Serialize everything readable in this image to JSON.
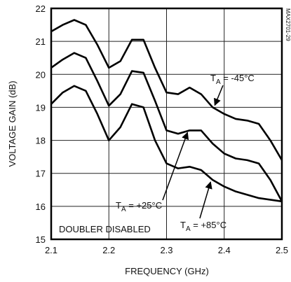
{
  "chart_data": {
    "type": "line",
    "xlabel": "FREQUENCY (GHz)",
    "ylabel": "VOLTAGE GAIN (dB)",
    "x": [
      2.1,
      2.12,
      2.14,
      2.16,
      2.18,
      2.2,
      2.22,
      2.24,
      2.26,
      2.28,
      2.3,
      2.32,
      2.34,
      2.36,
      2.38,
      2.4,
      2.42,
      2.44,
      2.46,
      2.48,
      2.5
    ],
    "series": [
      {
        "name": "TA = -45°C",
        "color": "#000000",
        "values": [
          21.3,
          21.5,
          21.65,
          21.5,
          20.9,
          20.2,
          20.4,
          21.05,
          21.05,
          20.2,
          19.45,
          19.4,
          19.6,
          19.4,
          19.0,
          18.8,
          18.65,
          18.6,
          18.5,
          18.0,
          17.4
        ]
      },
      {
        "name": "TA = +25°C",
        "color": "#000000",
        "values": [
          20.2,
          20.45,
          20.65,
          20.5,
          19.8,
          19.05,
          19.4,
          20.1,
          20.05,
          19.2,
          18.3,
          18.2,
          18.3,
          18.3,
          17.9,
          17.6,
          17.45,
          17.4,
          17.3,
          16.8,
          16.15
        ]
      },
      {
        "name": "TA = +85°C",
        "color": "#000000",
        "values": [
          19.1,
          19.45,
          19.65,
          19.5,
          18.8,
          18.0,
          18.4,
          19.1,
          19.0,
          18.0,
          17.3,
          17.15,
          17.2,
          17.1,
          16.8,
          16.6,
          16.45,
          16.35,
          16.25,
          16.2,
          16.15
        ]
      }
    ],
    "annotations": [
      "DOUBLER DISABLED",
      "MAX2701-29"
    ],
    "xlim": [
      2.1,
      2.5
    ],
    "xticks": [
      2.1,
      2.2,
      2.3,
      2.4,
      2.5
    ],
    "ylim": [
      15,
      22
    ],
    "yticks": [
      15,
      16,
      17,
      18,
      19,
      20,
      21,
      22
    ],
    "grid": true
  }
}
